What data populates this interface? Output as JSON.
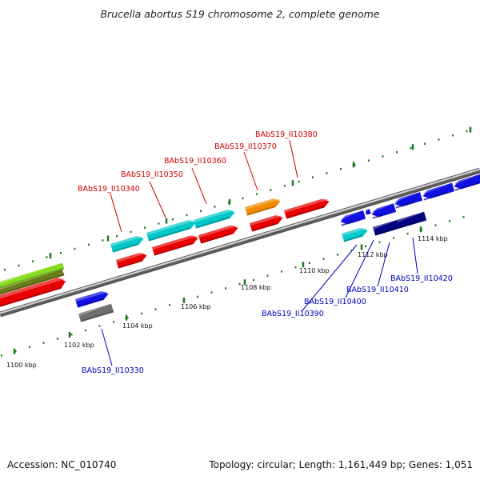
{
  "title": "Brucella abortus S19 chromosome 2, complete genome",
  "footer": {
    "accession": "Accession: NC_010740",
    "summary": "Topology: circular; Length: 1,161,449 bp; Genes: 1,051"
  },
  "colors": {
    "red": "#e80000",
    "cyan": "#00c8c8",
    "orange": "#f08c00",
    "blue": "#1010e0",
    "navy": "#000080",
    "gray": "#6e6e6e",
    "lime": "#88dd22",
    "olive": "#6a7d1a",
    "tick": "#1a7a1a",
    "label_top": "#cc0000",
    "label_bottom": "#0000bb",
    "leader_top": "#cc0000",
    "leader_bottom": "#0000bb"
  },
  "ticks": [
    {
      "label": "1100 kbp"
    },
    {
      "label": "1102 kbp"
    },
    {
      "label": "1104 kbp"
    },
    {
      "label": "1106 kbp"
    },
    {
      "label": "1108 kbp"
    },
    {
      "label": "1110 kbp"
    },
    {
      "label": "1112 kbp"
    },
    {
      "label": "1114 kbp"
    }
  ],
  "top_labels": [
    {
      "name": "BAbS19_II10340"
    },
    {
      "name": "BAbS19_II10350"
    },
    {
      "name": "BAbS19_II10360"
    },
    {
      "name": "BAbS19_II10370"
    },
    {
      "name": "BAbS19_II10380"
    }
  ],
  "bottom_labels": [
    {
      "name": "BAbS19_II10330"
    },
    {
      "name": "BAbS19_II10390"
    },
    {
      "name": "BAbS19_II10400"
    },
    {
      "name": "BAbS19_II10410"
    },
    {
      "name": "BAbS19_II10420"
    }
  ]
}
